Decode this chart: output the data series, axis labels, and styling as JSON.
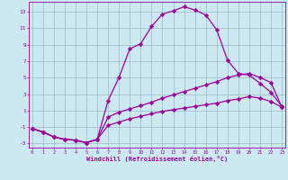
{
  "xlabel": "Windchill (Refroidissement éolien,°C)",
  "bg_color": "#cce8f0",
  "line_color": "#990099",
  "grid_color": "#99bbcc",
  "line1_x": [
    0,
    1,
    2,
    3,
    4,
    5,
    6,
    7,
    8,
    9,
    10,
    11,
    12,
    13,
    14,
    15,
    16,
    17,
    18,
    19,
    20,
    21,
    22,
    23
  ],
  "line1_y": [
    -1.2,
    -1.6,
    -2.2,
    -2.5,
    -2.6,
    -2.9,
    -2.5,
    2.2,
    5.0,
    8.5,
    9.1,
    11.2,
    12.7,
    13.1,
    13.6,
    13.2,
    12.6,
    10.8,
    7.1,
    5.5,
    5.3,
    4.3,
    3.2,
    1.5
  ],
  "line2_x": [
    0,
    1,
    2,
    3,
    4,
    5,
    6,
    7,
    8,
    9,
    10,
    11,
    12,
    13,
    14,
    15,
    16,
    17,
    18,
    19,
    20,
    21,
    22,
    23
  ],
  "line2_y": [
    -1.2,
    -1.6,
    -2.2,
    -2.5,
    -2.6,
    -2.9,
    -2.5,
    0.2,
    0.8,
    1.2,
    1.6,
    2.0,
    2.5,
    2.9,
    3.3,
    3.7,
    4.1,
    4.5,
    5.0,
    5.3,
    5.5,
    5.0,
    4.4,
    1.4
  ],
  "line3_x": [
    0,
    1,
    2,
    3,
    4,
    5,
    6,
    7,
    8,
    9,
    10,
    11,
    12,
    13,
    14,
    15,
    16,
    17,
    18,
    19,
    20,
    21,
    22,
    23
  ],
  "line3_y": [
    -1.2,
    -1.6,
    -2.2,
    -2.5,
    -2.6,
    -2.9,
    -2.5,
    -0.8,
    -0.4,
    0.0,
    0.3,
    0.6,
    0.9,
    1.1,
    1.3,
    1.5,
    1.7,
    1.9,
    2.2,
    2.4,
    2.7,
    2.5,
    2.1,
    1.4
  ],
  "xlim": [
    -0.3,
    23.3
  ],
  "ylim": [
    -3.5,
    14.2
  ],
  "yticks": [
    -3,
    -1,
    1,
    3,
    5,
    7,
    9,
    11,
    13
  ],
  "xticks": [
    0,
    1,
    2,
    3,
    4,
    5,
    6,
    7,
    8,
    9,
    10,
    11,
    12,
    13,
    14,
    15,
    16,
    17,
    18,
    19,
    20,
    21,
    22,
    23
  ],
  "marker": "D",
  "markersize": 2.2,
  "linewidth": 0.9
}
